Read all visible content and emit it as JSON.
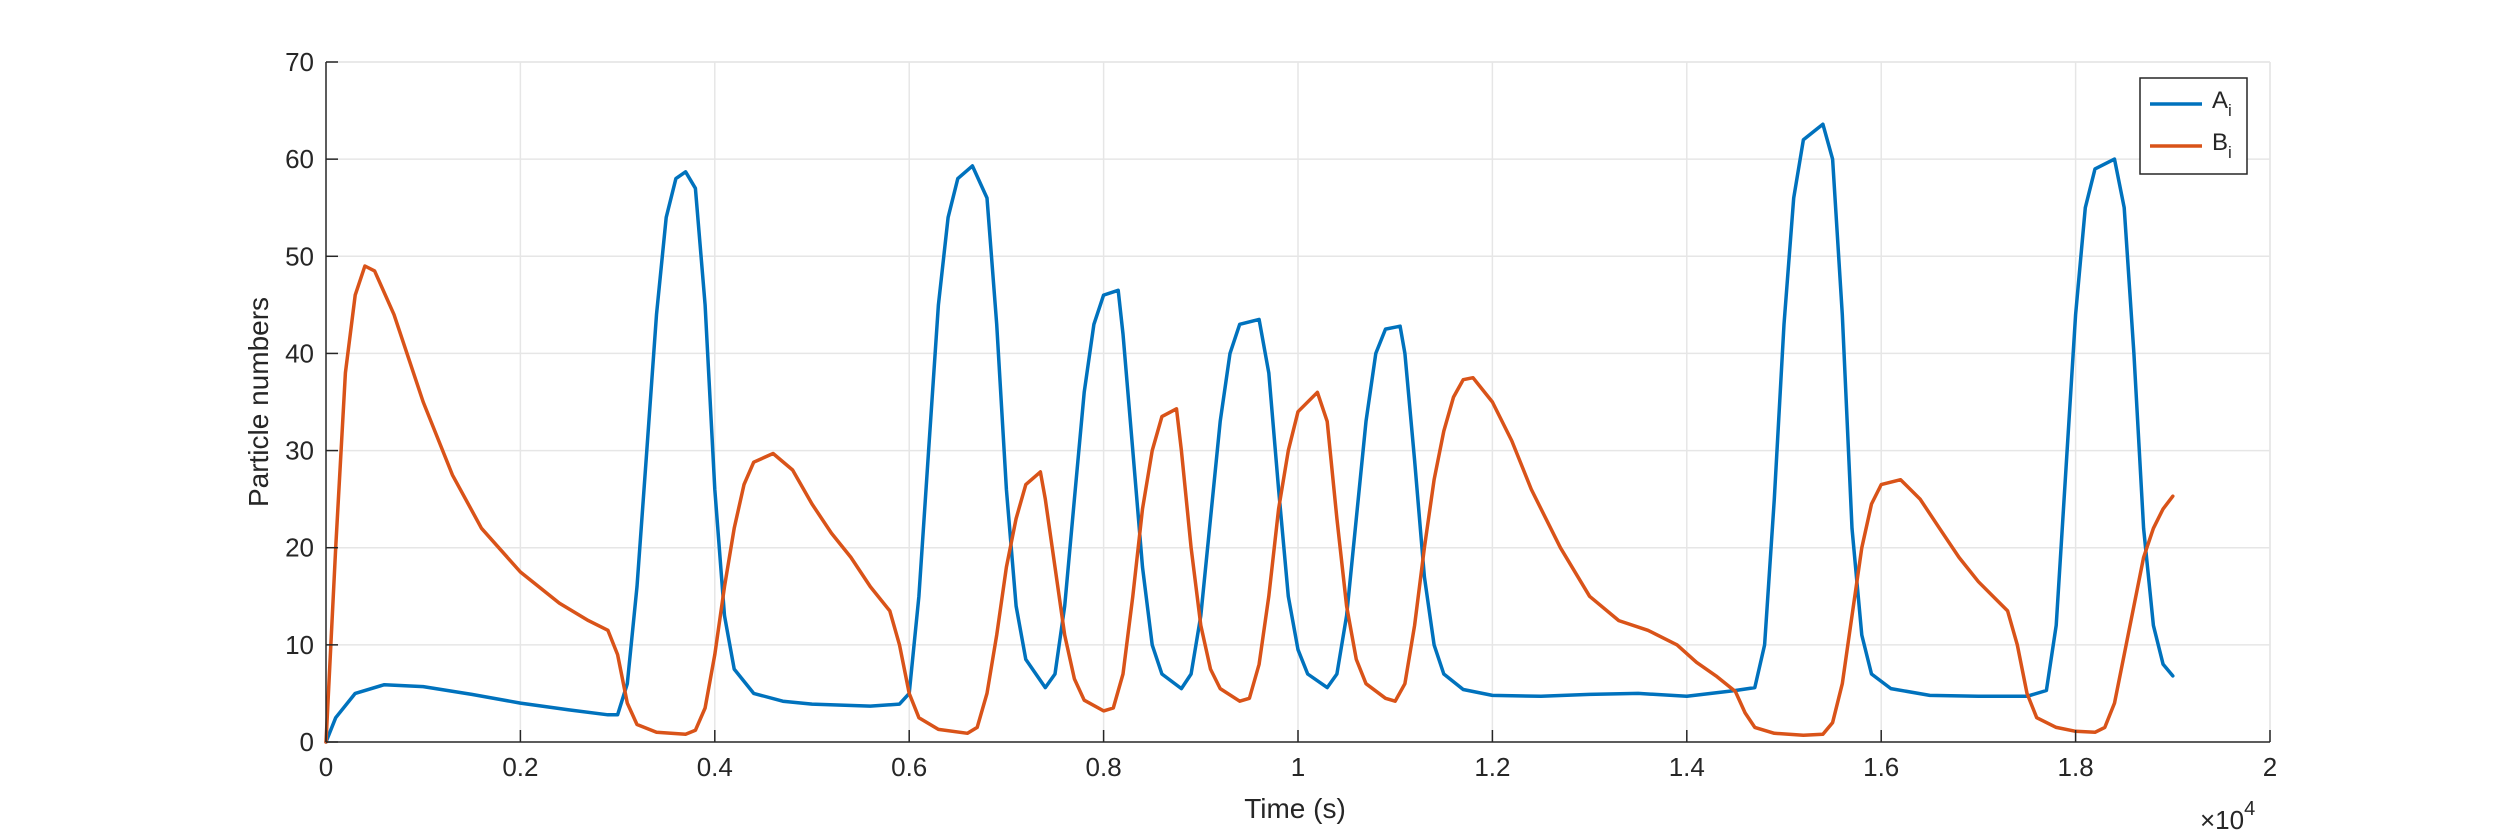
{
  "chart_data": {
    "type": "line",
    "xlabel": "Time (s)",
    "ylabel": "Particle numbers",
    "x_multiplier": {
      "base": "×10",
      "exponent": "4"
    },
    "xlim": [
      0,
      2
    ],
    "ylim": [
      0,
      70
    ],
    "x_ticks": [
      0,
      0.2,
      0.4,
      0.6,
      0.8,
      1,
      1.2,
      1.4,
      1.6,
      1.8,
      2
    ],
    "x_tick_labels": [
      "0",
      "0.2",
      "0.4",
      "0.6",
      "0.8",
      "1",
      "1.2",
      "1.4",
      "1.6",
      "1.8",
      "2"
    ],
    "y_ticks": [
      0,
      10,
      20,
      30,
      40,
      50,
      60,
      70
    ],
    "y_tick_labels": [
      "0",
      "10",
      "20",
      "30",
      "40",
      "50",
      "60",
      "70"
    ],
    "grid": true,
    "legend": {
      "position": "top-right"
    },
    "series": [
      {
        "name": "A",
        "subscript": "i",
        "color": "#0072BD",
        "points": [
          [
            0,
            0
          ],
          [
            0.01,
            2.5
          ],
          [
            0.03,
            5
          ],
          [
            0.06,
            5.9
          ],
          [
            0.1,
            5.7
          ],
          [
            0.15,
            4.9
          ],
          [
            0.2,
            4
          ],
          [
            0.25,
            3.3
          ],
          [
            0.29,
            2.8
          ],
          [
            0.3,
            2.8
          ],
          [
            0.31,
            6
          ],
          [
            0.32,
            16
          ],
          [
            0.33,
            30
          ],
          [
            0.34,
            44
          ],
          [
            0.35,
            54
          ],
          [
            0.36,
            58
          ],
          [
            0.37,
            58.7
          ],
          [
            0.38,
            57
          ],
          [
            0.39,
            45
          ],
          [
            0.4,
            26
          ],
          [
            0.41,
            13
          ],
          [
            0.42,
            7.5
          ],
          [
            0.44,
            5
          ],
          [
            0.47,
            4.2
          ],
          [
            0.5,
            3.9
          ],
          [
            0.53,
            3.8
          ],
          [
            0.56,
            3.7
          ],
          [
            0.59,
            3.9
          ],
          [
            0.6,
            5
          ],
          [
            0.61,
            15
          ],
          [
            0.62,
            30
          ],
          [
            0.63,
            45
          ],
          [
            0.64,
            54
          ],
          [
            0.65,
            58
          ],
          [
            0.665,
            59.3
          ],
          [
            0.68,
            56
          ],
          [
            0.69,
            43
          ],
          [
            0.7,
            26
          ],
          [
            0.71,
            14
          ],
          [
            0.72,
            8.5
          ],
          [
            0.74,
            5.6
          ],
          [
            0.75,
            7
          ],
          [
            0.76,
            14
          ],
          [
            0.77,
            25
          ],
          [
            0.78,
            36
          ],
          [
            0.79,
            43
          ],
          [
            0.8,
            46
          ],
          [
            0.815,
            46.5
          ],
          [
            0.82,
            42
          ],
          [
            0.83,
            30
          ],
          [
            0.84,
            18
          ],
          [
            0.85,
            10
          ],
          [
            0.86,
            7
          ],
          [
            0.88,
            5.5
          ],
          [
            0.89,
            7
          ],
          [
            0.9,
            13
          ],
          [
            0.91,
            23
          ],
          [
            0.92,
            33
          ],
          [
            0.93,
            40
          ],
          [
            0.94,
            43
          ],
          [
            0.96,
            43.5
          ],
          [
            0.97,
            38
          ],
          [
            0.98,
            26
          ],
          [
            0.99,
            15
          ],
          [
            1,
            9.5
          ],
          [
            1.01,
            7
          ],
          [
            1.03,
            5.6
          ],
          [
            1.04,
            7
          ],
          [
            1.05,
            13
          ],
          [
            1.06,
            23
          ],
          [
            1.07,
            33
          ],
          [
            1.08,
            40
          ],
          [
            1.09,
            42.5
          ],
          [
            1.105,
            42.8
          ],
          [
            1.11,
            40
          ],
          [
            1.12,
            29
          ],
          [
            1.13,
            17
          ],
          [
            1.14,
            10
          ],
          [
            1.15,
            7
          ],
          [
            1.17,
            5.4
          ],
          [
            1.2,
            4.8
          ],
          [
            1.25,
            4.7
          ],
          [
            1.3,
            4.9
          ],
          [
            1.35,
            5
          ],
          [
            1.4,
            4.7
          ],
          [
            1.45,
            5.3
          ],
          [
            1.47,
            5.6
          ],
          [
            1.48,
            10
          ],
          [
            1.49,
            25
          ],
          [
            1.5,
            43
          ],
          [
            1.51,
            56
          ],
          [
            1.52,
            62
          ],
          [
            1.54,
            63.6
          ],
          [
            1.55,
            60
          ],
          [
            1.56,
            44
          ],
          [
            1.57,
            22
          ],
          [
            1.58,
            11
          ],
          [
            1.59,
            7
          ],
          [
            1.61,
            5.5
          ],
          [
            1.65,
            4.8
          ],
          [
            1.7,
            4.7
          ],
          [
            1.75,
            4.7
          ],
          [
            1.77,
            5.3
          ],
          [
            1.78,
            12
          ],
          [
            1.79,
            28
          ],
          [
            1.8,
            44
          ],
          [
            1.81,
            55
          ],
          [
            1.82,
            59
          ],
          [
            1.84,
            60
          ],
          [
            1.85,
            55
          ],
          [
            1.86,
            40
          ],
          [
            1.87,
            22
          ],
          [
            1.88,
            12
          ],
          [
            1.89,
            8
          ],
          [
            1.9,
            6.8
          ]
        ]
      },
      {
        "name": "B",
        "subscript": "i",
        "color": "#D95319",
        "points": [
          [
            0,
            0
          ],
          [
            0.01,
            20
          ],
          [
            0.02,
            38
          ],
          [
            0.03,
            46
          ],
          [
            0.04,
            49
          ],
          [
            0.05,
            48.5
          ],
          [
            0.07,
            44
          ],
          [
            0.1,
            35
          ],
          [
            0.13,
            27.5
          ],
          [
            0.16,
            22
          ],
          [
            0.2,
            17.5
          ],
          [
            0.24,
            14.3
          ],
          [
            0.27,
            12.5
          ],
          [
            0.29,
            11.5
          ],
          [
            0.3,
            9
          ],
          [
            0.31,
            4
          ],
          [
            0.32,
            1.8
          ],
          [
            0.34,
            1
          ],
          [
            0.37,
            0.8
          ],
          [
            0.38,
            1.2
          ],
          [
            0.39,
            3.5
          ],
          [
            0.4,
            9
          ],
          [
            0.41,
            16
          ],
          [
            0.42,
            22
          ],
          [
            0.43,
            26.5
          ],
          [
            0.44,
            28.8
          ],
          [
            0.46,
            29.7
          ],
          [
            0.48,
            28
          ],
          [
            0.5,
            24.5
          ],
          [
            0.52,
            21.5
          ],
          [
            0.54,
            19
          ],
          [
            0.56,
            16
          ],
          [
            0.58,
            13.5
          ],
          [
            0.59,
            10
          ],
          [
            0.6,
            5
          ],
          [
            0.61,
            2.5
          ],
          [
            0.63,
            1.3
          ],
          [
            0.66,
            0.9
          ],
          [
            0.67,
            1.5
          ],
          [
            0.68,
            5
          ],
          [
            0.69,
            11
          ],
          [
            0.7,
            18
          ],
          [
            0.71,
            23
          ],
          [
            0.72,
            26.5
          ],
          [
            0.735,
            27.8
          ],
          [
            0.74,
            25
          ],
          [
            0.75,
            18
          ],
          [
            0.76,
            11
          ],
          [
            0.77,
            6.5
          ],
          [
            0.78,
            4.3
          ],
          [
            0.8,
            3.2
          ],
          [
            0.81,
            3.5
          ],
          [
            0.82,
            7
          ],
          [
            0.83,
            15
          ],
          [
            0.84,
            24
          ],
          [
            0.85,
            30
          ],
          [
            0.86,
            33.5
          ],
          [
            0.875,
            34.3
          ],
          [
            0.88,
            30
          ],
          [
            0.89,
            20
          ],
          [
            0.9,
            12
          ],
          [
            0.91,
            7.5
          ],
          [
            0.92,
            5.5
          ],
          [
            0.94,
            4.2
          ],
          [
            0.95,
            4.5
          ],
          [
            0.96,
            8
          ],
          [
            0.97,
            15
          ],
          [
            0.98,
            24
          ],
          [
            0.99,
            30
          ],
          [
            1,
            34
          ],
          [
            1.02,
            36
          ],
          [
            1.03,
            33
          ],
          [
            1.04,
            23
          ],
          [
            1.05,
            14
          ],
          [
            1.06,
            8.5
          ],
          [
            1.07,
            6
          ],
          [
            1.09,
            4.5
          ],
          [
            1.1,
            4.2
          ],
          [
            1.11,
            6
          ],
          [
            1.12,
            12
          ],
          [
            1.13,
            20
          ],
          [
            1.14,
            27
          ],
          [
            1.15,
            32
          ],
          [
            1.16,
            35.5
          ],
          [
            1.17,
            37.3
          ],
          [
            1.18,
            37.5
          ],
          [
            1.2,
            35
          ],
          [
            1.22,
            31
          ],
          [
            1.24,
            26
          ],
          [
            1.27,
            20
          ],
          [
            1.3,
            15
          ],
          [
            1.33,
            12.5
          ],
          [
            1.36,
            11.5
          ],
          [
            1.39,
            10
          ],
          [
            1.41,
            8.2
          ],
          [
            1.43,
            6.8
          ],
          [
            1.45,
            5.2
          ],
          [
            1.46,
            3
          ],
          [
            1.47,
            1.5
          ],
          [
            1.49,
            0.9
          ],
          [
            1.52,
            0.7
          ],
          [
            1.54,
            0.8
          ],
          [
            1.55,
            2
          ],
          [
            1.56,
            6
          ],
          [
            1.57,
            13
          ],
          [
            1.58,
            20
          ],
          [
            1.59,
            24.5
          ],
          [
            1.6,
            26.5
          ],
          [
            1.62,
            27
          ],
          [
            1.64,
            25
          ],
          [
            1.66,
            22
          ],
          [
            1.68,
            19
          ],
          [
            1.7,
            16.5
          ],
          [
            1.72,
            14.5
          ],
          [
            1.73,
            13.5
          ],
          [
            1.74,
            10
          ],
          [
            1.75,
            5
          ],
          [
            1.76,
            2.5
          ],
          [
            1.78,
            1.5
          ],
          [
            1.8,
            1.1
          ],
          [
            1.82,
            1
          ],
          [
            1.83,
            1.5
          ],
          [
            1.84,
            4
          ],
          [
            1.85,
            9
          ],
          [
            1.86,
            14
          ],
          [
            1.87,
            19
          ],
          [
            1.88,
            22
          ],
          [
            1.89,
            24
          ],
          [
            1.9,
            25.3
          ]
        ]
      }
    ]
  }
}
